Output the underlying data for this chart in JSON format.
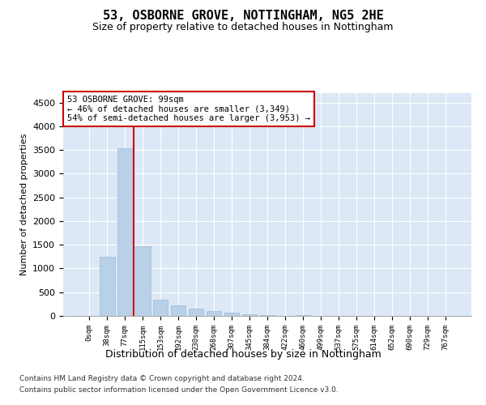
{
  "title": "53, OSBORNE GROVE, NOTTINGHAM, NG5 2HE",
  "subtitle": "Size of property relative to detached houses in Nottingham",
  "xlabel": "Distribution of detached houses by size in Nottingham",
  "ylabel": "Number of detached properties",
  "categories": [
    "0sqm",
    "38sqm",
    "77sqm",
    "115sqm",
    "153sqm",
    "192sqm",
    "230sqm",
    "268sqm",
    "307sqm",
    "345sqm",
    "384sqm",
    "422sqm",
    "460sqm",
    "499sqm",
    "537sqm",
    "575sqm",
    "614sqm",
    "652sqm",
    "690sqm",
    "729sqm",
    "767sqm"
  ],
  "values": [
    5,
    1250,
    3530,
    1470,
    350,
    220,
    150,
    110,
    70,
    40,
    20,
    5,
    10,
    5,
    0,
    0,
    5,
    0,
    0,
    0,
    0
  ],
  "bar_color": "#b8d0e8",
  "bar_edge_color": "#9abdd8",
  "vline_x": 2.5,
  "vline_color": "#cc0000",
  "annotation_text": "53 OSBORNE GROVE: 99sqm\n← 46% of detached houses are smaller (3,349)\n54% of semi-detached houses are larger (3,953) →",
  "annotation_box_color": "#cc0000",
  "annotation_text_color": "#000000",
  "ylim": [
    0,
    4700
  ],
  "yticks": [
    0,
    500,
    1000,
    1500,
    2000,
    2500,
    3000,
    3500,
    4000,
    4500
  ],
  "bg_color": "#dce8f5",
  "footer_line1": "Contains HM Land Registry data © Crown copyright and database right 2024.",
  "footer_line2": "Contains public sector information licensed under the Open Government Licence v3.0."
}
